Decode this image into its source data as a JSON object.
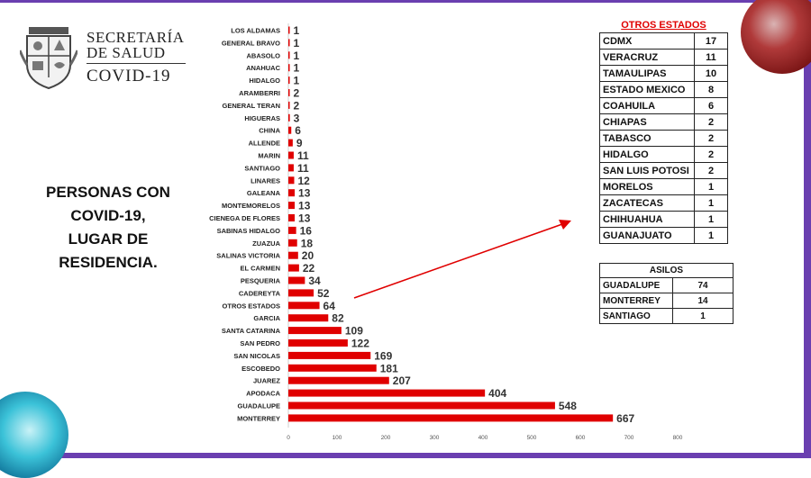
{
  "brand": {
    "line1": "SECRETARÍA",
    "line2": "DE SALUD",
    "line3": "COVID-19",
    "logo_icon": "nuevo-leon-coat-of-arms-icon"
  },
  "headline": {
    "line1": "PERSONAS CON",
    "line2": "COVID-19,",
    "line3": "LUGAR DE",
    "line4": "RESIDENCIA."
  },
  "colors": {
    "bar": "#e00000",
    "frame": "#6a3fb0",
    "arrow": "#e00000"
  },
  "chart_data": {
    "type": "bar",
    "orientation": "horizontal",
    "categories": [
      "LOS ALDAMAS",
      "GENERAL BRAVO",
      "ABASOLO",
      "ANAHUAC",
      "HIDALGO",
      "ARAMBERRI",
      "GENERAL TERAN",
      "HIGUERAS",
      "CHINA",
      "ALLENDE",
      "MARIN",
      "SANTIAGO",
      "LINARES",
      "GALEANA",
      "MONTEMORELOS",
      "CIENEGA DE FLORES",
      "SABINAS HIDALGO",
      "ZUAZUA",
      "SALINAS VICTORIA",
      "EL CARMEN",
      "PESQUERIA",
      "CADEREYTA",
      "OTROS ESTADOS",
      "GARCIA",
      "SANTA CATARINA",
      "SAN PEDRO",
      "SAN NICOLAS",
      "ESCOBEDO",
      "JUAREZ",
      "APODACA",
      "GUADALUPE",
      "MONTERREY"
    ],
    "values": [
      1,
      1,
      1,
      1,
      1,
      2,
      2,
      3,
      6,
      9,
      11,
      11,
      12,
      13,
      13,
      13,
      16,
      18,
      20,
      22,
      34,
      52,
      64,
      82,
      109,
      122,
      169,
      181,
      207,
      404,
      548,
      667
    ],
    "x_ticks": [
      "0",
      "100",
      "200",
      "300",
      "400",
      "500",
      "600",
      "700",
      "800"
    ],
    "xlim": [
      0,
      800
    ],
    "title": "",
    "xlabel": "",
    "ylabel": "",
    "grid": false,
    "legend": "none"
  },
  "otros_estados": {
    "title": "OTROS ESTADOS",
    "rows": [
      {
        "state": "CDMX",
        "count": "17"
      },
      {
        "state": "VERACRUZ",
        "count": "11"
      },
      {
        "state": "TAMAULIPAS",
        "count": "10"
      },
      {
        "state": "ESTADO MEXICO",
        "count": "8"
      },
      {
        "state": "COAHUILA",
        "count": "6"
      },
      {
        "state": "CHIAPAS",
        "count": "2"
      },
      {
        "state": "TABASCO",
        "count": "2"
      },
      {
        "state": "HIDALGO",
        "count": "2"
      },
      {
        "state": "SAN LUIS POTOSI",
        "count": "2"
      },
      {
        "state": "MORELOS",
        "count": "1"
      },
      {
        "state": "ZACATECAS",
        "count": "1"
      },
      {
        "state": "CHIHUAHUA",
        "count": "1"
      },
      {
        "state": "GUANAJUATO",
        "count": "1"
      }
    ]
  },
  "asilos": {
    "title": "ASILOS",
    "rows": [
      {
        "place": "GUADALUPE",
        "count": "74"
      },
      {
        "place": "MONTERREY",
        "count": "14"
      },
      {
        "place": "SANTIAGO",
        "count": "1"
      }
    ]
  }
}
